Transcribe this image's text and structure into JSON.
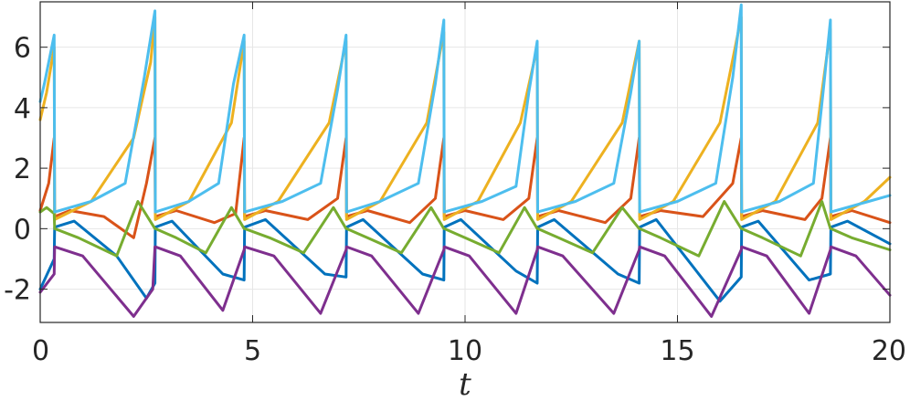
{
  "chart_data": {
    "type": "line",
    "title": "",
    "xlabel": "t",
    "ylabel": "",
    "xlim": [
      0,
      20
    ],
    "ylim": [
      -3.1,
      7.5
    ],
    "x_ticks": [
      0,
      5,
      10,
      15,
      20
    ],
    "x_tick_labels": [
      "0",
      "5",
      "10",
      "15",
      "20"
    ],
    "y_ticks": [
      -2,
      0,
      2,
      4,
      6
    ],
    "y_tick_labels": [
      "-2",
      "0",
      "2",
      "4",
      "6"
    ],
    "grid": true,
    "legend": "none",
    "spike_times": [
      0.33,
      2.7,
      4.8,
      7.2,
      9.5,
      11.7,
      14.1,
      16.5,
      18.6
    ],
    "spike_peaks": [
      6.4,
      7.2,
      6.4,
      6.4,
      6.9,
      6.2,
      6.2,
      7.4,
      6.9
    ],
    "series": [
      {
        "color": "#0072BD",
        "x": [
          0,
          0.33,
          0.34,
          0.8,
          1.8,
          2.5,
          2.7,
          2.71,
          3.1,
          4.3,
          4.8,
          4.81,
          5.3,
          6.7,
          7.2,
          7.21,
          7.6,
          9.0,
          9.5,
          9.51,
          9.9,
          11.2,
          11.7,
          11.71,
          12.1,
          13.6,
          14.1,
          14.11,
          14.5,
          16.0,
          16.5,
          16.51,
          16.9,
          18.1,
          18.6,
          18.61,
          19.0,
          20
        ],
        "y": [
          -2.0,
          -1.0,
          0.05,
          0.25,
          -0.9,
          -2.3,
          -1.8,
          0.05,
          0.25,
          -1.5,
          -1.7,
          0.05,
          0.3,
          -1.5,
          -1.6,
          0.05,
          0.3,
          -1.5,
          -1.7,
          0.05,
          0.3,
          -1.4,
          -1.8,
          0.05,
          0.3,
          -1.5,
          -1.8,
          0.05,
          0.3,
          -2.4,
          -1.6,
          0.05,
          0.25,
          -1.7,
          -1.5,
          0.05,
          0.25,
          -0.5
        ]
      },
      {
        "color": "#D95319",
        "x": [
          0,
          0.2,
          0.33,
          0.34,
          0.7,
          1.5,
          2.2,
          2.5,
          2.7,
          2.71,
          3.2,
          4.1,
          4.6,
          4.8,
          4.81,
          5.3,
          6.3,
          7.0,
          7.2,
          7.21,
          7.7,
          8.7,
          9.3,
          9.5,
          9.51,
          10.0,
          10.9,
          11.5,
          11.7,
          11.71,
          12.2,
          13.3,
          13.9,
          14.1,
          14.11,
          14.6,
          15.6,
          16.3,
          16.5,
          16.51,
          17.0,
          18.0,
          18.4,
          18.6,
          18.61,
          19.1,
          20
        ],
        "y": [
          0.6,
          1.5,
          3.0,
          0.4,
          0.6,
          0.4,
          -0.3,
          1.5,
          3.0,
          0.4,
          0.6,
          0.2,
          0.5,
          3.0,
          0.4,
          0.6,
          0.3,
          1.0,
          3.0,
          0.4,
          0.6,
          0.2,
          1.0,
          3.0,
          0.4,
          0.6,
          0.3,
          1.0,
          3.0,
          0.4,
          0.6,
          0.2,
          1.0,
          3.0,
          0.4,
          0.6,
          0.4,
          1.5,
          3.0,
          0.4,
          0.6,
          0.3,
          1.0,
          3.0,
          0.4,
          0.6,
          0.2
        ]
      },
      {
        "color": "#EDB120",
        "x": [
          0,
          0.15,
          0.33,
          0.34,
          1.2,
          2.2,
          2.6,
          2.7,
          2.71,
          3.5,
          4.5,
          4.8,
          4.81,
          5.6,
          6.8,
          7.2,
          7.21,
          8.0,
          9.1,
          9.5,
          9.51,
          10.3,
          11.3,
          11.7,
          11.71,
          12.5,
          13.7,
          14.1,
          14.11,
          14.9,
          16.0,
          16.5,
          16.51,
          17.3,
          18.3,
          18.6,
          18.61,
          19.4,
          20
        ],
        "y": [
          3.6,
          4.5,
          6.0,
          0.3,
          0.9,
          3.0,
          5.5,
          7.0,
          0.3,
          0.9,
          3.5,
          6.2,
          0.3,
          0.9,
          3.5,
          6.2,
          0.3,
          0.9,
          3.5,
          6.5,
          0.3,
          0.9,
          3.5,
          6.0,
          0.3,
          0.9,
          3.5,
          6.2,
          0.3,
          0.9,
          3.5,
          7.0,
          0.3,
          0.9,
          3.5,
          6.6,
          0.3,
          0.9,
          1.7
        ]
      },
      {
        "color": "#7E2F8E",
        "x": [
          0,
          0.33,
          0.34,
          1.0,
          2.2,
          2.65,
          2.7,
          2.71,
          3.3,
          4.3,
          4.8,
          4.81,
          5.5,
          6.6,
          7.2,
          7.21,
          7.8,
          8.9,
          9.5,
          9.51,
          10.1,
          11.2,
          11.7,
          11.71,
          12.3,
          13.5,
          14.1,
          14.11,
          14.7,
          15.8,
          16.5,
          16.51,
          17.1,
          18.1,
          18.6,
          18.61,
          19.2,
          20
        ],
        "y": [
          -2.1,
          -1.5,
          -0.6,
          -0.9,
          -2.9,
          -2.0,
          -0.6,
          -0.6,
          -0.9,
          -2.7,
          -0.7,
          -0.6,
          -0.9,
          -2.8,
          -0.7,
          -0.6,
          -0.9,
          -2.8,
          -0.7,
          -0.6,
          -0.9,
          -2.8,
          -0.7,
          -0.6,
          -0.9,
          -2.8,
          -0.7,
          -0.6,
          -0.9,
          -2.9,
          -0.7,
          -0.6,
          -0.9,
          -2.8,
          -0.7,
          -0.6,
          -0.9,
          -2.2
        ]
      },
      {
        "color": "#77AC30",
        "x": [
          0,
          0.15,
          0.33,
          0.34,
          0.9,
          1.8,
          2.3,
          2.7,
          2.71,
          3.2,
          3.9,
          4.5,
          4.8,
          4.81,
          5.4,
          6.2,
          6.9,
          7.2,
          7.21,
          7.7,
          8.5,
          9.2,
          9.5,
          9.51,
          10.0,
          10.8,
          11.4,
          11.7,
          11.71,
          12.2,
          13.0,
          13.7,
          14.1,
          14.11,
          14.6,
          15.5,
          16.1,
          16.5,
          16.51,
          17.0,
          17.9,
          18.4,
          18.6,
          18.61,
          19.1,
          20
        ],
        "y": [
          0.55,
          0.7,
          0.5,
          0.0,
          -0.3,
          -0.9,
          0.9,
          0.0,
          0.0,
          -0.3,
          -0.8,
          0.7,
          0.0,
          0.0,
          -0.3,
          -0.8,
          0.7,
          0.0,
          0.0,
          -0.3,
          -0.8,
          0.7,
          0.0,
          0.0,
          -0.3,
          -0.8,
          0.7,
          0.0,
          0.0,
          -0.3,
          -0.8,
          0.7,
          0.0,
          0.0,
          -0.3,
          -0.9,
          0.9,
          0.0,
          0.0,
          -0.3,
          -0.9,
          0.9,
          0.0,
          0.0,
          -0.3,
          -0.7
        ]
      },
      {
        "color": "#4DBEEE",
        "x": [
          0,
          0.1,
          0.33,
          0.34,
          1.2,
          2.0,
          2.45,
          2.7,
          2.71,
          3.5,
          4.2,
          4.55,
          4.8,
          4.81,
          5.7,
          6.6,
          7.0,
          7.2,
          7.21,
          8.0,
          8.9,
          9.3,
          9.5,
          9.51,
          10.4,
          11.2,
          11.5,
          11.7,
          11.71,
          12.6,
          13.5,
          13.9,
          14.1,
          14.11,
          15.0,
          15.9,
          16.3,
          16.5,
          16.51,
          17.4,
          18.2,
          18.45,
          18.6,
          18.61,
          19.5,
          20
        ],
        "y": [
          4.2,
          4.8,
          6.4,
          0.55,
          0.9,
          1.5,
          5.0,
          7.2,
          0.55,
          0.9,
          1.5,
          4.8,
          6.4,
          0.55,
          0.9,
          1.5,
          4.6,
          6.4,
          0.55,
          0.9,
          1.5,
          4.8,
          6.9,
          0.55,
          0.9,
          1.4,
          4.5,
          6.2,
          0.55,
          0.9,
          1.5,
          4.5,
          6.2,
          0.55,
          0.9,
          1.5,
          5.0,
          7.4,
          0.55,
          0.9,
          1.5,
          4.8,
          6.9,
          0.55,
          0.9,
          1.1
        ]
      }
    ]
  }
}
